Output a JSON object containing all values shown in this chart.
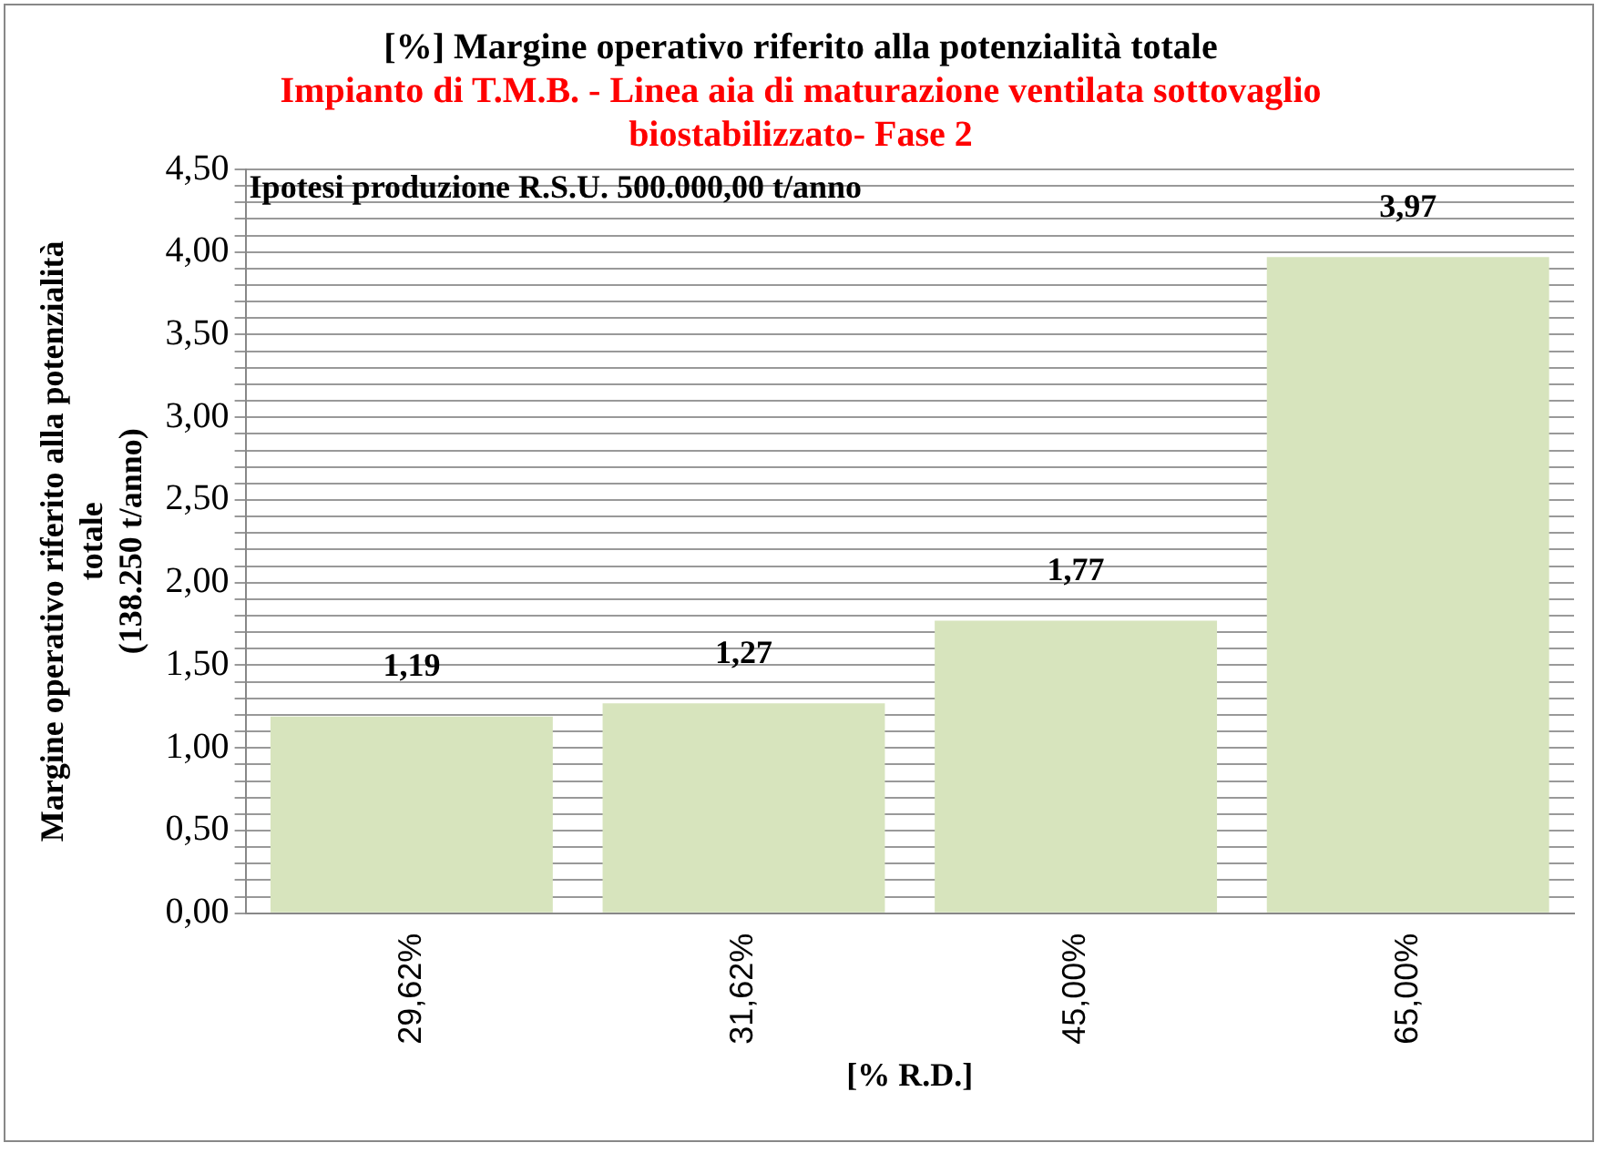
{
  "chart_data": {
    "type": "bar",
    "title": "[%] Margine operativo riferito alla potenzialità totale",
    "subtitle": "Impianto di T.M.B. - Linea aia di maturazione ventilata sottovaglio\nbiostabilizzato- Fase 2",
    "xlabel": "[% R.D.]",
    "ylabel": "Margine operativo riferito alla potenzialità\ntotale\n(138.250 t/anno)",
    "annotations": [
      "Ipotesi produzione R.S.U. 500.000,00 t/anno"
    ],
    "categories": [
      "29,62%",
      "31,62%",
      "45,00%",
      "65,00%"
    ],
    "values": [
      1.19,
      1.27,
      1.77,
      3.97
    ],
    "color": "#d7e4bd",
    "value_labels": [
      "1,19",
      "1,27",
      "1,77",
      "3,97"
    ],
    "ylim": [
      0,
      4.5
    ],
    "yticks": [
      {
        "value": 0,
        "label": "0,00"
      },
      {
        "value": 0.1,
        "label": null
      },
      {
        "value": 0.2,
        "label": null
      },
      {
        "value": 0.3,
        "label": null
      },
      {
        "value": 0.4,
        "label": null
      },
      {
        "value": 0.5,
        "label": "0,50"
      },
      {
        "value": 0.6,
        "label": null
      },
      {
        "value": 0.7,
        "label": null
      },
      {
        "value": 0.8,
        "label": null
      },
      {
        "value": 0.9,
        "label": null
      },
      {
        "value": 1,
        "label": "1,00"
      },
      {
        "value": 1.1,
        "label": null
      },
      {
        "value": 1.2,
        "label": null
      },
      {
        "value": 1.3,
        "label": null
      },
      {
        "value": 1.4,
        "label": null
      },
      {
        "value": 1.5,
        "label": "1,50"
      },
      {
        "value": 1.6,
        "label": null
      },
      {
        "value": 1.7,
        "label": null
      },
      {
        "value": 1.8,
        "label": null
      },
      {
        "value": 1.9,
        "label": null
      },
      {
        "value": 2,
        "label": "2,00"
      },
      {
        "value": 2.1,
        "label": null
      },
      {
        "value": 2.2,
        "label": null
      },
      {
        "value": 2.3,
        "label": null
      },
      {
        "value": 2.4,
        "label": null
      },
      {
        "value": 2.5,
        "label": "2,50"
      },
      {
        "value": 2.6,
        "label": null
      },
      {
        "value": 2.7,
        "label": null
      },
      {
        "value": 2.8,
        "label": null
      },
      {
        "value": 2.9,
        "label": null
      },
      {
        "value": 3,
        "label": "3,00"
      },
      {
        "value": 3.1,
        "label": null
      },
      {
        "value": 3.2,
        "label": null
      },
      {
        "value": 3.3,
        "label": null
      },
      {
        "value": 3.4,
        "label": null
      },
      {
        "value": 3.5,
        "label": "3,50"
      },
      {
        "value": 3.6,
        "label": null
      },
      {
        "value": 3.7,
        "label": null
      },
      {
        "value": 3.8,
        "label": null
      },
      {
        "value": 3.9,
        "label": null
      },
      {
        "value": 4,
        "label": "4,00"
      },
      {
        "value": 4.1,
        "label": null
      },
      {
        "value": 4.2,
        "label": null
      },
      {
        "value": 4.3,
        "label": null
      },
      {
        "value": 4.4,
        "label": null
      },
      {
        "value": 4.5,
        "label": "4,50"
      }
    ],
    "grid": "y"
  }
}
